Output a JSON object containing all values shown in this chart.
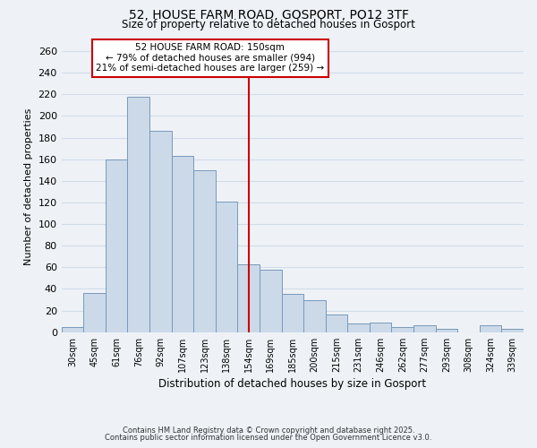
{
  "title": "52, HOUSE FARM ROAD, GOSPORT, PO12 3TF",
  "subtitle": "Size of property relative to detached houses in Gosport",
  "xlabel": "Distribution of detached houses by size in Gosport",
  "ylabel": "Number of detached properties",
  "bar_color": "#ccd9e8",
  "bar_edge_color": "#7799bb",
  "grid_color": "#d0dce8",
  "ref_line_color": "#cc0000",
  "annotation_title": "52 HOUSE FARM ROAD: 150sqm",
  "annotation_line1": "← 79% of detached houses are smaller (994)",
  "annotation_line2": "21% of semi-detached houses are larger (259) →",
  "annotation_box_edge": "#cc0000",
  "bin_labels": [
    "30sqm",
    "45sqm",
    "61sqm",
    "76sqm",
    "92sqm",
    "107sqm",
    "123sqm",
    "138sqm",
    "154sqm",
    "169sqm",
    "185sqm",
    "200sqm",
    "215sqm",
    "231sqm",
    "246sqm",
    "262sqm",
    "277sqm",
    "293sqm",
    "308sqm",
    "324sqm",
    "339sqm"
  ],
  "bin_values": [
    5,
    36,
    160,
    218,
    186,
    163,
    150,
    121,
    63,
    58,
    35,
    30,
    16,
    8,
    9,
    5,
    6,
    3,
    0,
    6,
    3
  ],
  "ref_bin_label": "154sqm",
  "ylim": [
    0,
    270
  ],
  "yticks": [
    0,
    20,
    40,
    60,
    80,
    100,
    120,
    140,
    160,
    180,
    200,
    220,
    240,
    260
  ],
  "footnote1": "Contains HM Land Registry data © Crown copyright and database right 2025.",
  "footnote2": "Contains public sector information licensed under the Open Government Licence v3.0.",
  "background_color": "#eef2f7"
}
